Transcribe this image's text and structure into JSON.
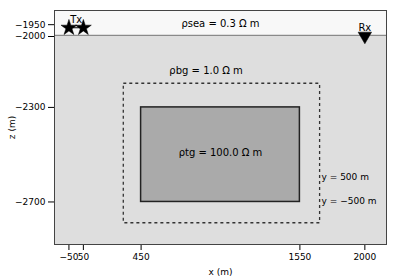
{
  "chart_data": {
    "type": "section",
    "xlabel": "x (m)",
    "ylabel": "z (m)",
    "xlim": [
      -150,
      2150
    ],
    "ylim": [
      -2880,
      -1890
    ],
    "xticks": [
      -50,
      50,
      450,
      1550,
      2000
    ],
    "yticks": [
      -1950,
      -2000,
      -2300,
      -2700
    ],
    "grid": false,
    "seafloor_z": -1995,
    "sea_color": "#f8f8f8",
    "sub_color": "#dedede",
    "rectangles": [
      {
        "x": [
          330,
          1690
        ],
        "y": [
          -2790,
          -2200
        ],
        "line_style": "dotted"
      },
      {
        "x": [
          450,
          1550
        ],
        "y": [
          -2700,
          -2300
        ],
        "line_style": "solid",
        "color": "#aaaaaa"
      }
    ],
    "markers": [
      {
        "x": [
          -50,
          50
        ],
        "y": [
          -1963,
          -1963
        ],
        "marker": "star",
        "line_style": "solid",
        "color": "black"
      },
      {
        "x": [
          2000
        ],
        "y": [
          -1998
        ],
        "marker": "triangle_down",
        "color": "black"
      }
    ],
    "marker_labels": [
      {
        "text": "Tx",
        "x": 0,
        "y": -1941
      },
      {
        "text": "Rx",
        "x": 2000,
        "y": -1976
      }
    ],
    "annotations": [
      {
        "text": "ρsea = 0.3 Ω m",
        "x": 1000,
        "y": -1945
      },
      {
        "text": "ρbg = 1.0 Ω m",
        "x": 900,
        "y": -2145
      },
      {
        "text": "ρtg = 100.0 Ω m",
        "x": 1000,
        "y": -2490
      }
    ],
    "side_notes": [
      {
        "text": "y = 500 m",
        "x": 1700,
        "y": -2595
      },
      {
        "text": "y = −500 m",
        "x": 1700,
        "y": -2698
      }
    ]
  }
}
